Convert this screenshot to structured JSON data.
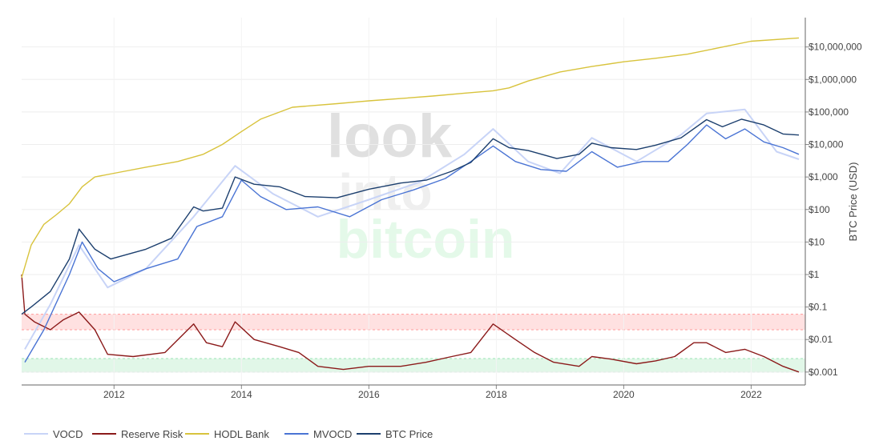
{
  "chart_data": {
    "type": "line",
    "title": "",
    "xlabel": "",
    "ylabel": "BTC Price (USD)",
    "yscale": "log",
    "xlim": [
      2010.55,
      2022.85
    ],
    "ylim": [
      0.0004,
      80000000
    ],
    "grid": true,
    "legend_position": "bottom",
    "watermark": [
      "look",
      "into",
      "bitcoin"
    ],
    "x_ticks": [
      2012,
      2014,
      2016,
      2018,
      2020,
      2022
    ],
    "x_tick_labels": [
      "2012",
      "2014",
      "2016",
      "2018",
      "2020",
      "2022"
    ],
    "y_ticks": [
      0.001,
      0.01,
      0.1,
      1,
      10,
      100,
      1000,
      10000,
      100000,
      1000000,
      10000000
    ],
    "y_tick_labels": [
      "$0.001",
      "$0.01",
      "$0.1",
      "$1",
      "$10",
      "$100",
      "$1,000",
      "$10,000",
      "$100,000",
      "$1,000,000",
      "$10,000,000"
    ],
    "bands": [
      {
        "from": 0.02,
        "to": 0.06,
        "color": "#ff9a9a",
        "opacity": 0.3
      },
      {
        "from": 0.001,
        "to": 0.0026,
        "color": "#9ae6b4",
        "opacity": 0.3
      }
    ],
    "series": [
      {
        "name": "VOCD",
        "color": "#c8d4f7",
        "x": [
          2010.6,
          2011.0,
          2011.45,
          2011.9,
          2012.5,
          2013.25,
          2013.9,
          2014.5,
          2015.2,
          2016.0,
          2016.8,
          2017.5,
          2017.95,
          2018.5,
          2019.0,
          2019.5,
          2020.2,
          2020.9,
          2021.3,
          2021.9,
          2022.4,
          2022.75
        ],
        "values": [
          0.005,
          0.12,
          8,
          0.4,
          1.5,
          60,
          2200,
          300,
          60,
          200,
          700,
          5000,
          30000,
          3000,
          1300,
          16000,
          3000,
          20000,
          90000,
          120000,
          6000,
          3500
        ]
      },
      {
        "name": "Reserve Risk",
        "color": "#8b1a1a",
        "x": [
          2010.55,
          2010.6,
          2010.75,
          2011.0,
          2011.2,
          2011.45,
          2011.7,
          2011.9,
          2012.3,
          2012.8,
          2013.25,
          2013.45,
          2013.7,
          2013.9,
          2014.2,
          2014.6,
          2014.9,
          2015.2,
          2015.6,
          2016.0,
          2016.5,
          2016.9,
          2017.3,
          2017.6,
          2017.95,
          2018.3,
          2018.6,
          2018.9,
          2019.3,
          2019.5,
          2019.8,
          2020.2,
          2020.5,
          2020.8,
          2021.1,
          2021.3,
          2021.6,
          2021.9,
          2022.2,
          2022.5,
          2022.75
        ],
        "values": [
          1.0,
          0.06,
          0.035,
          0.02,
          0.04,
          0.07,
          0.02,
          0.0035,
          0.003,
          0.004,
          0.03,
          0.008,
          0.006,
          0.035,
          0.01,
          0.006,
          0.004,
          0.0015,
          0.0012,
          0.0015,
          0.0015,
          0.002,
          0.003,
          0.004,
          0.03,
          0.01,
          0.004,
          0.002,
          0.0015,
          0.003,
          0.0025,
          0.0018,
          0.0022,
          0.003,
          0.008,
          0.008,
          0.004,
          0.005,
          0.003,
          0.0015,
          0.001
        ]
      },
      {
        "name": "HODL Bank",
        "color": "#d8c33c",
        "x": [
          2010.55,
          2010.7,
          2010.9,
          2011.1,
          2011.3,
          2011.5,
          2011.7,
          2012.0,
          2012.5,
          2013.0,
          2013.4,
          2013.7,
          2014.0,
          2014.3,
          2014.8,
          2015.5,
          2016.0,
          2016.5,
          2017.0,
          2017.5,
          2017.95,
          2018.2,
          2018.5,
          2019.0,
          2019.5,
          2020.0,
          2020.5,
          2021.0,
          2021.5,
          2022.0,
          2022.75
        ],
        "values": [
          0.8,
          8,
          35,
          70,
          150,
          500,
          1000,
          1300,
          2000,
          3000,
          5000,
          10000,
          25000,
          60000,
          140000,
          180000,
          220000,
          260000,
          310000,
          380000,
          450000,
          550000,
          900000,
          1700000,
          2500000,
          3500000,
          4500000,
          6000000,
          9500000,
          15000000,
          19000000
        ]
      },
      {
        "name": "MVOCD",
        "color": "#4a74d4",
        "x": [
          2010.6,
          2010.9,
          2011.3,
          2011.5,
          2011.75,
          2012.0,
          2012.5,
          2013.0,
          2013.3,
          2013.7,
          2014.0,
          2014.3,
          2014.7,
          2015.2,
          2015.7,
          2016.2,
          2016.7,
          2017.2,
          2017.6,
          2017.95,
          2018.3,
          2018.7,
          2019.1,
          2019.5,
          2019.9,
          2020.3,
          2020.7,
          2021.0,
          2021.3,
          2021.6,
          2021.9,
          2022.2,
          2022.5,
          2022.75
        ],
        "values": [
          0.002,
          0.02,
          1,
          10,
          1.5,
          0.6,
          1.5,
          3,
          30,
          60,
          800,
          250,
          100,
          120,
          60,
          200,
          400,
          900,
          3000,
          9000,
          3000,
          1700,
          1500,
          6000,
          2000,
          3000,
          3000,
          10000,
          40000,
          15000,
          30000,
          12000,
          8000,
          5000
        ]
      },
      {
        "name": "BTC Price",
        "color": "#1c3f6e",
        "x": [
          2010.55,
          2010.7,
          2011.0,
          2011.3,
          2011.45,
          2011.7,
          2011.95,
          2012.5,
          2012.9,
          2013.25,
          2013.4,
          2013.7,
          2013.9,
          2014.2,
          2014.6,
          2015.0,
          2015.5,
          2016.0,
          2016.5,
          2016.9,
          2017.3,
          2017.6,
          2017.95,
          2018.2,
          2018.5,
          2018.95,
          2019.3,
          2019.5,
          2019.8,
          2020.2,
          2020.5,
          2020.9,
          2021.3,
          2021.55,
          2021.85,
          2022.2,
          2022.5,
          2022.75
        ],
        "values": [
          0.06,
          0.1,
          0.3,
          3,
          25,
          6,
          3,
          6,
          13,
          120,
          90,
          110,
          1000,
          600,
          500,
          250,
          230,
          420,
          650,
          800,
          1500,
          2800,
          15000,
          8000,
          6500,
          3700,
          5000,
          11000,
          8000,
          7000,
          9500,
          16000,
          58000,
          35000,
          60000,
          40000,
          21000,
          19500
        ]
      }
    ]
  }
}
